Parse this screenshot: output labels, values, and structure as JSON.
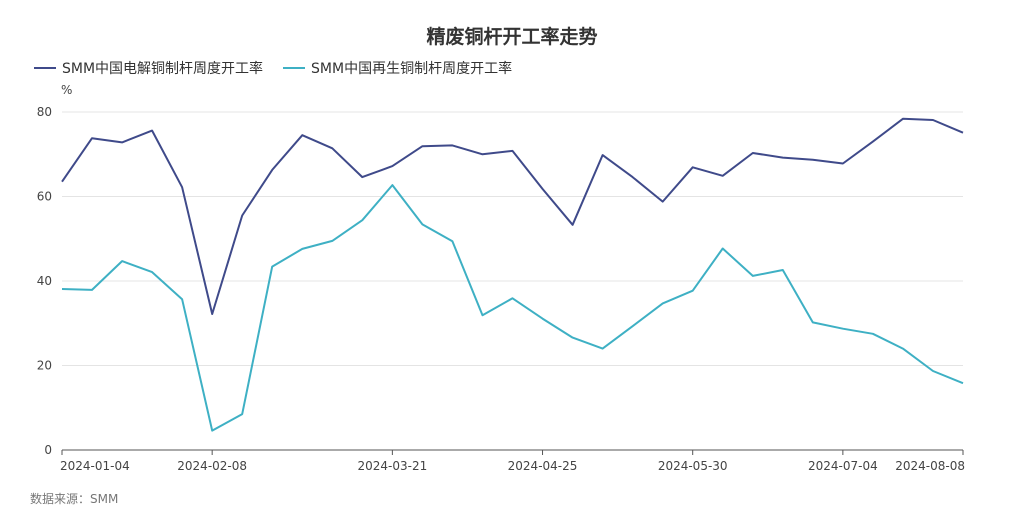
{
  "chart_data": {
    "type": "line",
    "title": "精废铜杆开工率走势",
    "ylabel": "%",
    "ylim": [
      0,
      80
    ],
    "yticks": [
      0,
      20,
      40,
      60,
      80
    ],
    "xlabels": [
      "2024-01-04",
      "2024-02-08",
      "2024-03-21",
      "2024-04-25",
      "2024-05-30",
      "2024-07-04",
      "2024-08-08"
    ],
    "xlabel_indices": [
      0,
      5,
      11,
      16,
      21,
      26,
      30
    ],
    "legend_position": "top-left",
    "grid": "horizontal",
    "series": [
      {
        "name": "SMM中国电解铜制杆周度开工率",
        "color": "#3f4a8a",
        "values": [
          63.5,
          73.8,
          72.8,
          75.6,
          62.2,
          32.2,
          55.5,
          66.3,
          74.5,
          71.4,
          64.6,
          67.2,
          71.9,
          72.1,
          70.0,
          70.8,
          61.8,
          53.3,
          69.8,
          64.6,
          58.8,
          66.9,
          64.9,
          70.3,
          69.2,
          68.7,
          67.8,
          73.0,
          78.4,
          78.1,
          75.1
        ]
      },
      {
        "name": "SMM中国再生铜制杆周度开工率",
        "color": "#3eb0c4",
        "values": [
          38.1,
          37.9,
          44.7,
          42.1,
          35.7,
          4.6,
          8.5,
          43.4,
          47.6,
          49.5,
          54.4,
          62.7,
          53.4,
          49.4,
          31.9,
          35.9,
          31.1,
          26.6,
          24.0,
          29.3,
          34.7,
          37.7,
          47.7,
          41.2,
          42.6,
          30.2,
          28.7,
          27.5,
          24.0,
          18.7,
          15.8
        ]
      }
    ]
  },
  "source_note": "数据来源：SMM"
}
